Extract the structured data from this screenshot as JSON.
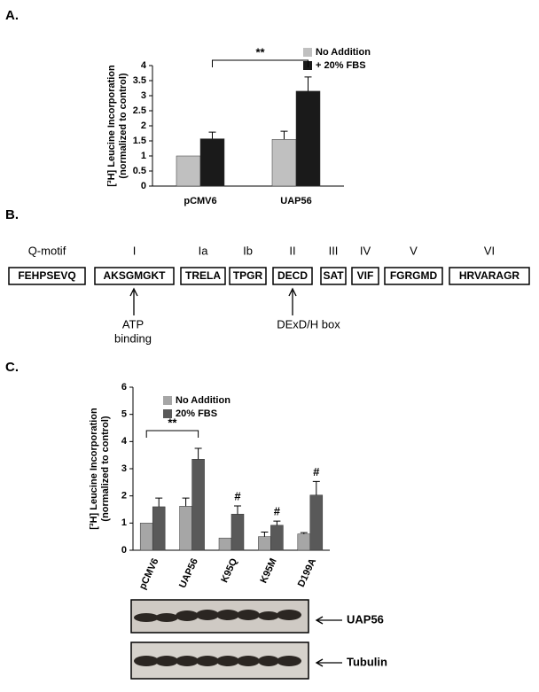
{
  "panels": {
    "a": "A.",
    "b": "B.",
    "c": "C."
  },
  "chart_data": [
    {
      "type": "bar",
      "ylabel": [
        "[³H] Leucine Incorporation",
        "(normalized to control)"
      ],
      "categories": [
        "pCMV6",
        "UAP56"
      ],
      "series": [
        {
          "name": "No Addition",
          "color": "#c0c0c0",
          "values": [
            1.0,
            1.55
          ],
          "errors": [
            null,
            0.27
          ]
        },
        {
          "name": "+ 20% FBS",
          "color": "#1a1a1a",
          "values": [
            1.57,
            3.15
          ],
          "errors": [
            0.22,
            0.47
          ],
          "annotations": [
            null,
            null
          ]
        }
      ],
      "ylim": [
        0,
        4
      ],
      "yticks": [
        0,
        0.5,
        1,
        1.5,
        2,
        2.5,
        3,
        3.5,
        4
      ],
      "significance": "**"
    },
    {
      "type": "bar",
      "ylabel": [
        "[³H] Leucine Incorporation",
        "(normalized to control)"
      ],
      "categories": [
        "pCMV6",
        "UAP56",
        "K95Q",
        "K95M",
        "D199A"
      ],
      "series": [
        {
          "name": "No Addition",
          "color": "#a6a6a6",
          "values": [
            1.0,
            1.62,
            0.45,
            0.5,
            0.6
          ],
          "errors": [
            null,
            0.3,
            null,
            0.17,
            0.05
          ]
        },
        {
          "name": "20% FBS",
          "color": "#595959",
          "values": [
            1.6,
            3.35,
            1.33,
            0.92,
            2.03
          ],
          "errors": [
            0.32,
            0.4,
            0.3,
            0.15,
            0.5
          ],
          "annotations": [
            null,
            null,
            "#",
            "#",
            "#"
          ]
        }
      ],
      "ylim": [
        0,
        6
      ],
      "yticks": [
        0,
        1,
        2,
        3,
        4,
        5,
        6
      ],
      "significance": "**"
    }
  ],
  "motifs": [
    {
      "name": "Q-motif",
      "sequence": "FEHPSEVQ"
    },
    {
      "name": "I",
      "sequence": "AKSGMGKT"
    },
    {
      "name": "Ia",
      "sequence": "TRELA"
    },
    {
      "name": "Ib",
      "sequence": "TPGR"
    },
    {
      "name": "II",
      "sequence": "DECD"
    },
    {
      "name": "III",
      "sequence": "SAT"
    },
    {
      "name": "IV",
      "sequence": "VIF"
    },
    {
      "name": "V",
      "sequence": "FGRGMD"
    },
    {
      "name": "VI",
      "sequence": "HRVARAGR"
    }
  ],
  "motif_notes": [
    [
      "ATP",
      "binding"
    ],
    [
      "DExD/H box"
    ]
  ],
  "blots": [
    "UAP56",
    "Tubulin"
  ]
}
